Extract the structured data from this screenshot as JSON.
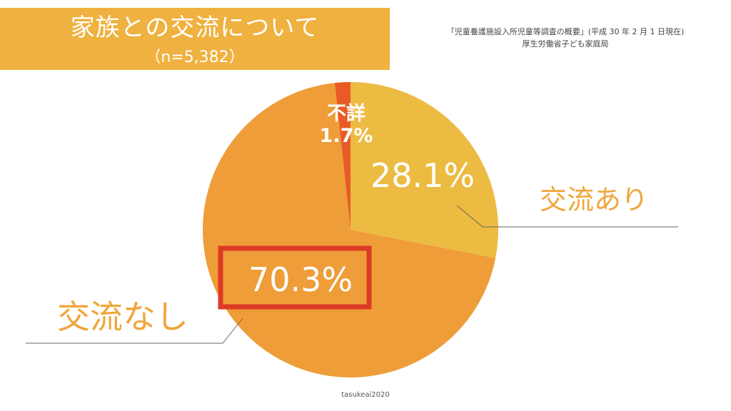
{
  "title": {
    "main": "家族との交流について",
    "sub": "（n=5,382）"
  },
  "source": {
    "line1": "「児童養護施設入所児童等調査の概要」(平成 30 年 2 月 1 日現在)",
    "line2": "厚生労働省子ども家庭局"
  },
  "chart_data": {
    "type": "pie",
    "start": "12 o'clock",
    "direction": "clockwise",
    "slices": [
      {
        "label": "交流あり",
        "value": 28.1,
        "value_label": "28.1%",
        "color": "#ecbb42"
      },
      {
        "label": "交流なし",
        "value": 70.3,
        "value_label": "70.3%",
        "color": "#ee9d38",
        "highlighted": true,
        "highlight_color": "#dd3a26"
      },
      {
        "label": "不詳",
        "value": 1.7,
        "value_label": "1.7%",
        "color": "#e85b26"
      }
    ]
  },
  "footer": "tasukeai2020"
}
